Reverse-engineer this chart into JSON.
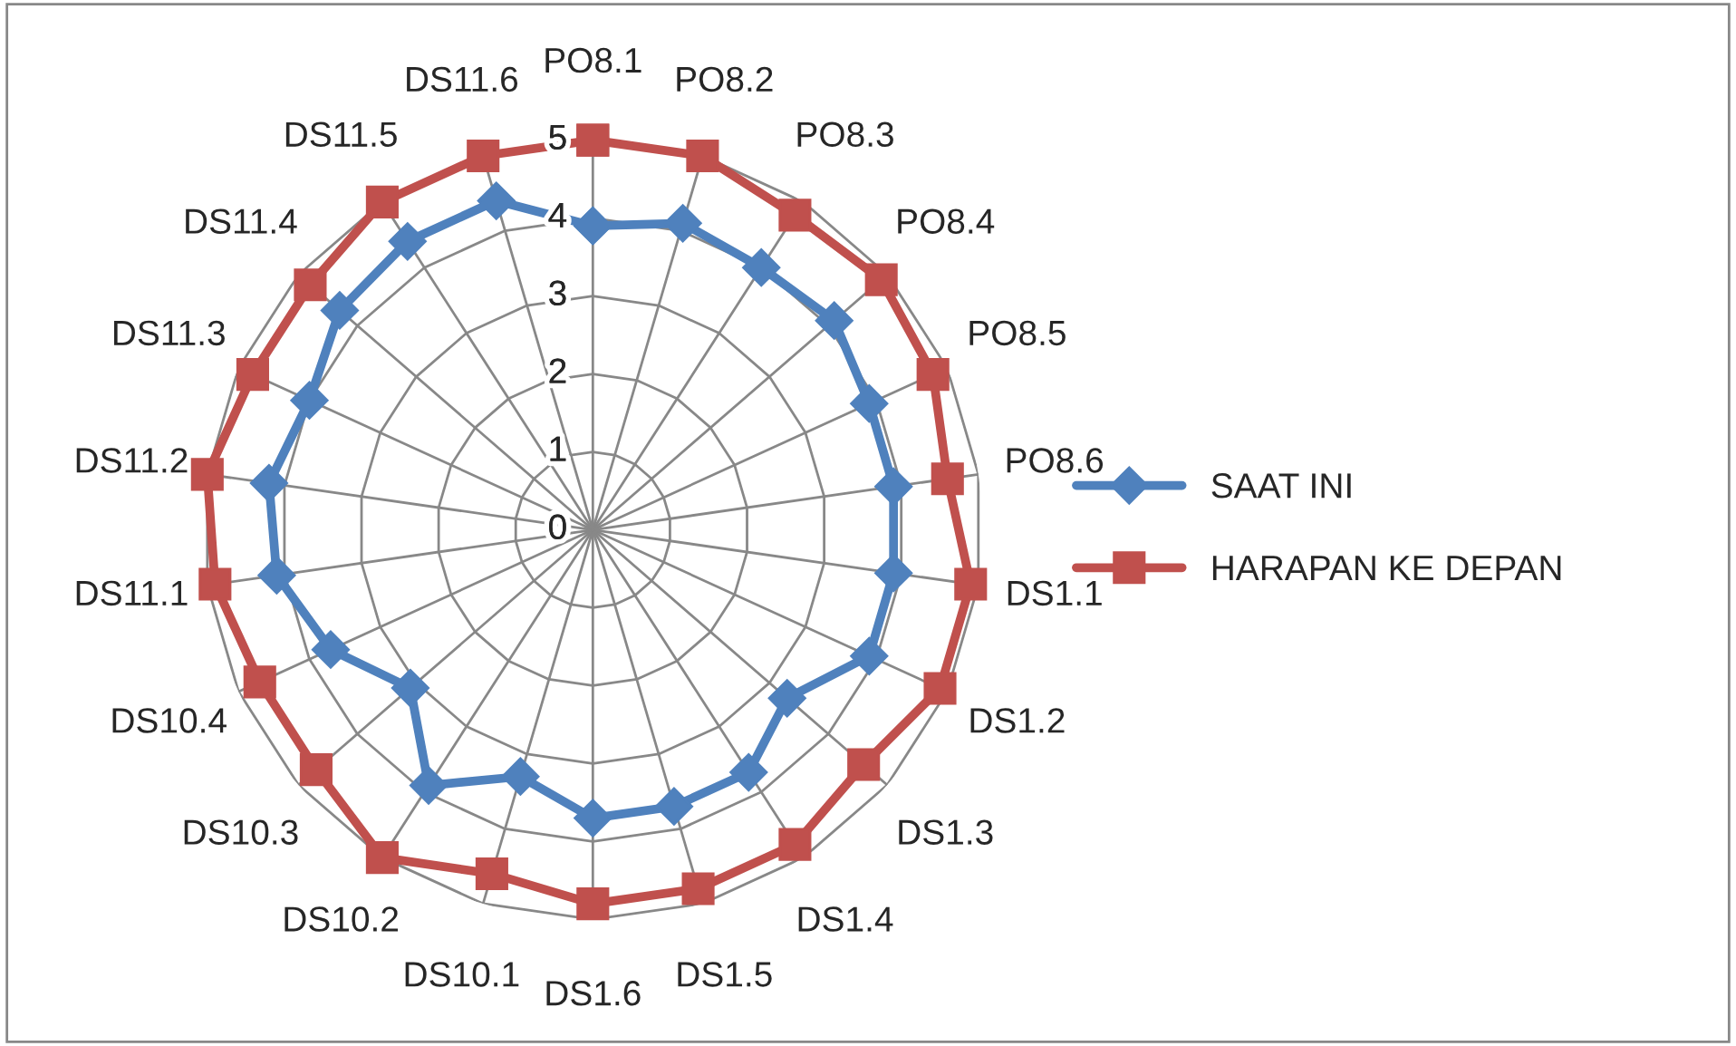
{
  "chart_data": {
    "type": "radar",
    "categories": [
      "PO8.1",
      "PO8.2",
      "PO8.3",
      "PO8.4",
      "PO8.5",
      "PO8.6",
      "DS1.1",
      "DS1.2",
      "DS1.3",
      "DS1.4",
      "DS1.5",
      "DS1.6",
      "DS10.1",
      "DS10.2",
      "DS10.3",
      "DS10.4",
      "DS11.1",
      "DS11.2",
      "DS11.3",
      "DS11.4",
      "DS11.5",
      "DS11.6"
    ],
    "series": [
      {
        "name": "SAAT INI",
        "color": "#4f81bd",
        "marker": "diamond",
        "values": [
          3.9,
          4.1,
          4.0,
          4.1,
          3.9,
          3.9,
          3.9,
          3.9,
          3.3,
          3.7,
          3.7,
          3.7,
          3.3,
          3.9,
          3.1,
          3.7,
          4.1,
          4.2,
          4.0,
          4.3,
          4.4,
          4.4
        ]
      },
      {
        "name": "HARAPAN KE DEPAN",
        "color": "#c0504d",
        "marker": "square",
        "values": [
          5.0,
          5.0,
          4.8,
          4.9,
          4.8,
          4.6,
          4.9,
          4.9,
          4.6,
          4.8,
          4.8,
          4.8,
          4.6,
          5.0,
          4.7,
          4.7,
          4.9,
          5.0,
          4.8,
          4.8,
          5.0,
          5.0
        ]
      }
    ],
    "ylim": [
      0,
      5
    ],
    "yticks": [
      0,
      1,
      2,
      3,
      4,
      5
    ],
    "grid": true,
    "legend": "right"
  }
}
